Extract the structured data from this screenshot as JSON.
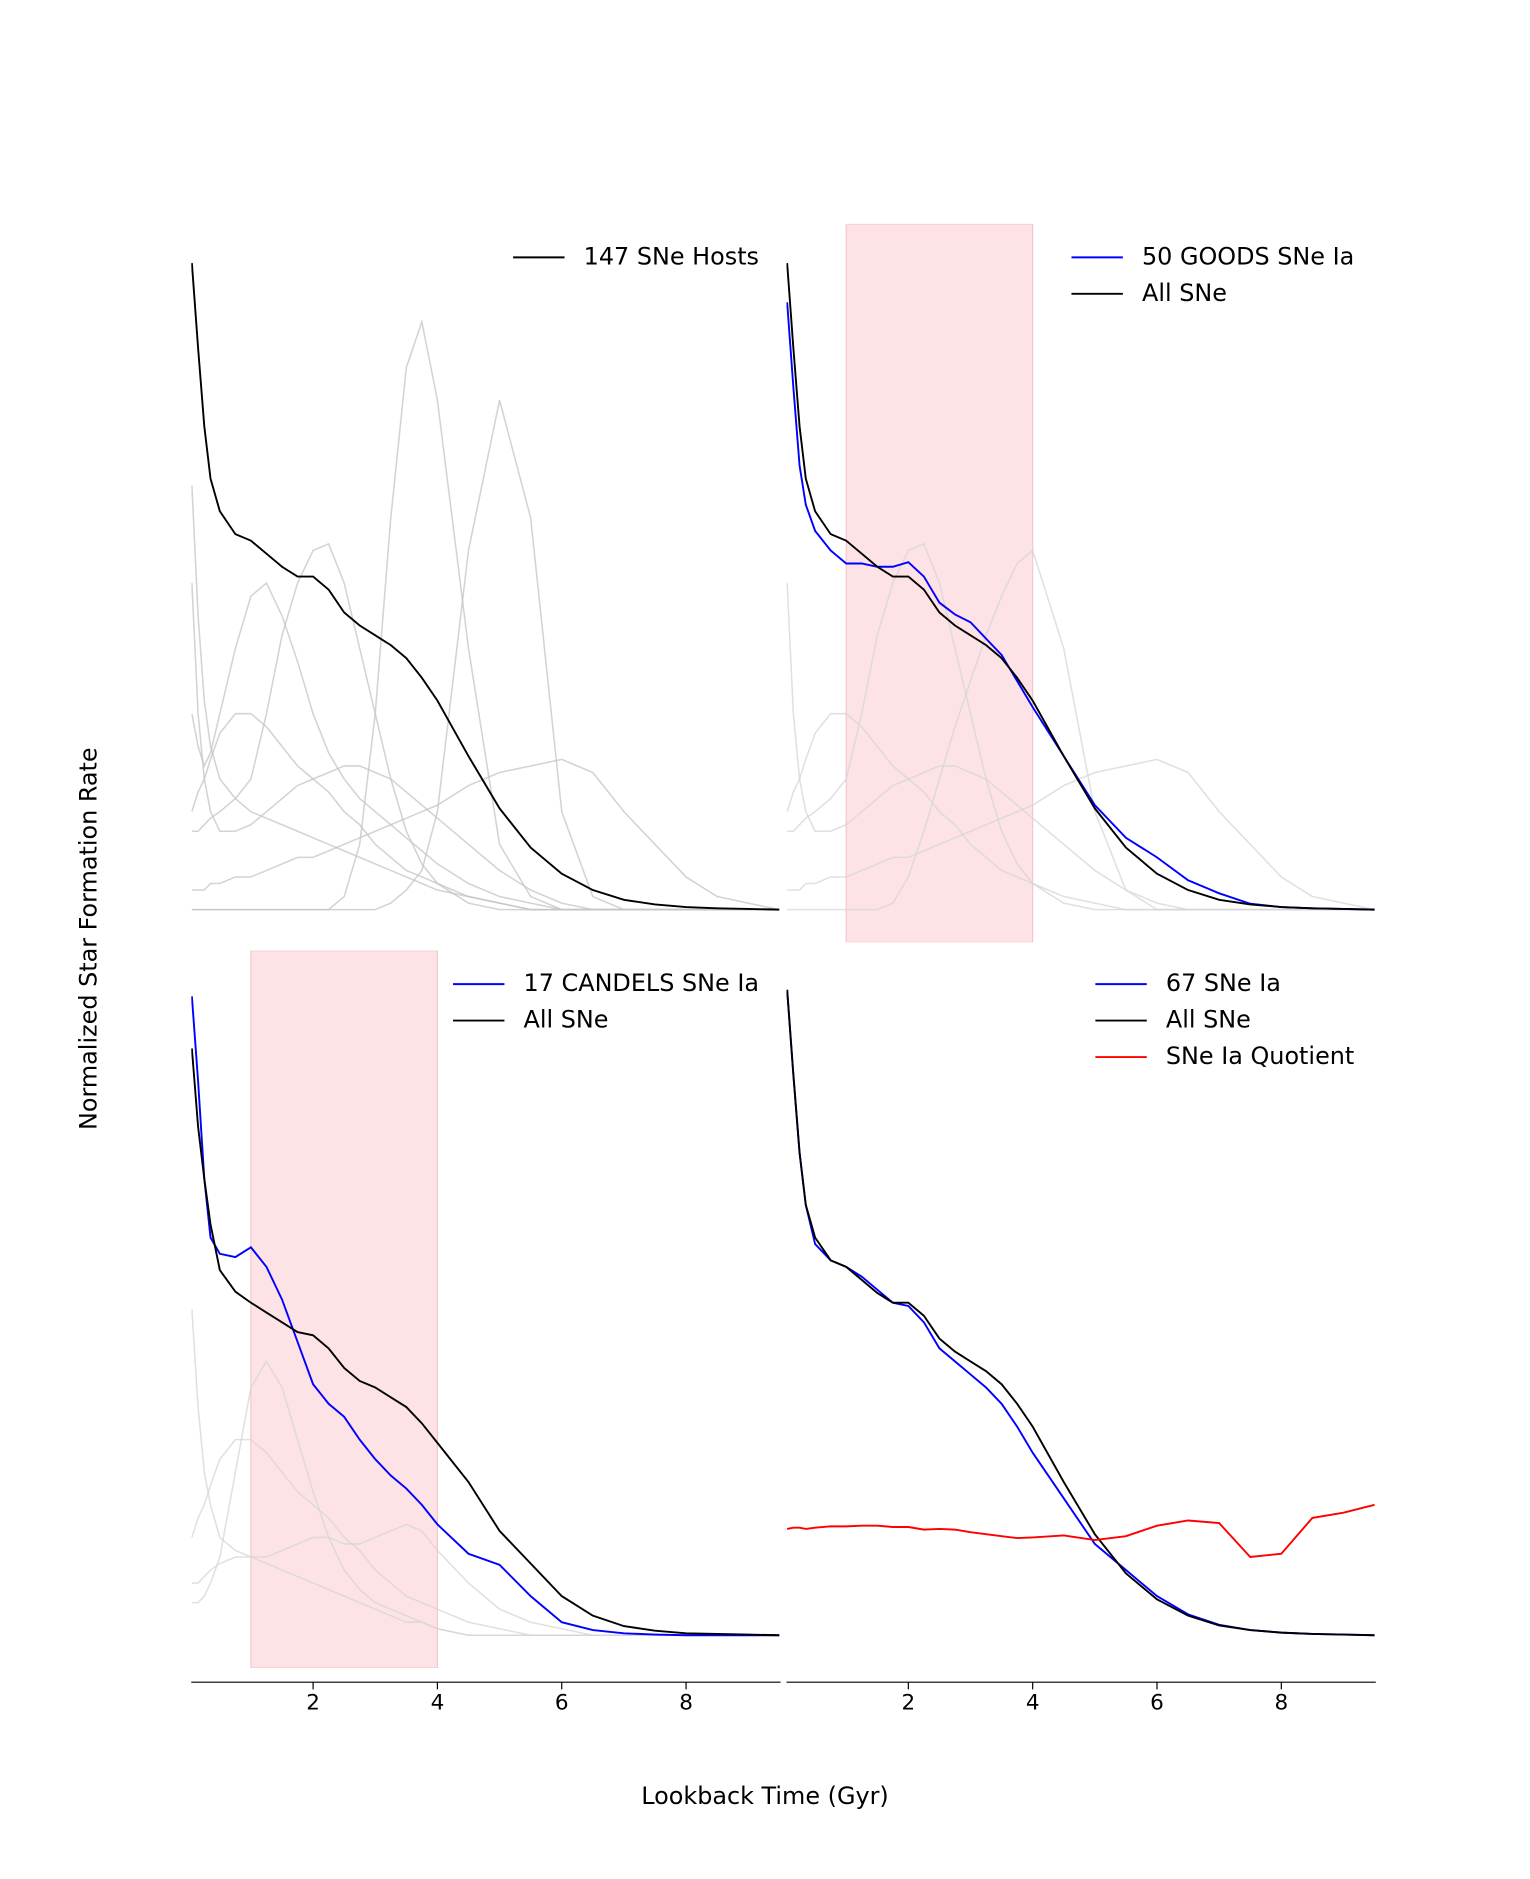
{
  "ylabel": "Normalized Star Formation Rate",
  "xlabel": "Lookback Time (Gyr)",
  "chart_data": [
    {
      "type": "line",
      "xlim": [
        0.04,
        9.52
      ],
      "ylim": [
        -0.05,
        1.05
      ],
      "x": [
        0.05,
        0.15,
        0.25,
        0.35,
        0.5,
        0.75,
        1,
        1.25,
        1.5,
        1.75,
        2,
        2.25,
        2.5,
        2.75,
        3,
        3.25,
        3.5,
        3.75,
        4,
        4.5,
        5,
        5.5,
        6,
        6.5,
        7,
        7.5,
        8,
        8.5,
        9,
        9.5
      ],
      "series": [
        {
          "color": "#c4c4c4",
          "values": [
            0,
            0,
            0,
            0,
            0,
            0,
            0,
            0,
            0,
            0,
            0,
            0,
            0.02,
            0.1,
            0.3,
            0.6,
            0.83,
            0.9,
            0.78,
            0.4,
            0.1,
            0.02,
            0,
            0,
            0,
            0,
            0,
            0,
            0,
            0
          ]
        },
        {
          "color": "#c4c4c4",
          "values": [
            0,
            0,
            0,
            0,
            0,
            0,
            0,
            0,
            0,
            0,
            0,
            0,
            0,
            0,
            0,
            0.01,
            0.03,
            0.06,
            0.15,
            0.55,
            0.78,
            0.6,
            0.15,
            0.02,
            0,
            0,
            0,
            0,
            0,
            0
          ]
        },
        {
          "color": "#c4c4c4",
          "values": [
            0.12,
            0.12,
            0.13,
            0.14,
            0.15,
            0.17,
            0.2,
            0.3,
            0.42,
            0.5,
            0.55,
            0.56,
            0.5,
            0.4,
            0.3,
            0.2,
            0.12,
            0.07,
            0.04,
            0.01,
            0,
            0,
            0,
            0,
            0,
            0,
            0,
            0,
            0,
            0
          ]
        },
        {
          "color": "#c4c4c4",
          "values": [
            0.03,
            0.03,
            0.03,
            0.04,
            0.04,
            0.05,
            0.05,
            0.06,
            0.07,
            0.08,
            0.08,
            0.09,
            0.1,
            0.11,
            0.12,
            0.13,
            0.14,
            0.15,
            0.16,
            0.19,
            0.21,
            0.22,
            0.23,
            0.21,
            0.15,
            0.1,
            0.05,
            0.02,
            0.01,
            0
          ]
        },
        {
          "color": "#c4c4c4",
          "values": [
            0.65,
            0.45,
            0.32,
            0.25,
            0.2,
            0.17,
            0.15,
            0.14,
            0.13,
            0.12,
            0.11,
            0.1,
            0.09,
            0.08,
            0.07,
            0.06,
            0.05,
            0.04,
            0.03,
            0.02,
            0.01,
            0,
            0,
            0,
            0,
            0,
            0,
            0,
            0,
            0
          ]
        },
        {
          "color": "#c4c4c4",
          "values": [
            0.15,
            0.18,
            0.2,
            0.23,
            0.27,
            0.3,
            0.3,
            0.28,
            0.25,
            0.22,
            0.2,
            0.18,
            0.15,
            0.13,
            0.1,
            0.08,
            0.06,
            0.05,
            0.04,
            0.02,
            0.01,
            0,
            0,
            0,
            0,
            0,
            0,
            0,
            0,
            0
          ]
        },
        {
          "color": "#c4c4c4",
          "values": [
            0.3,
            0.25,
            0.22,
            0.24,
            0.3,
            0.4,
            0.48,
            0.5,
            0.45,
            0.38,
            0.3,
            0.24,
            0.2,
            0.17,
            0.15,
            0.13,
            0.11,
            0.09,
            0.07,
            0.04,
            0.02,
            0.01,
            0,
            0,
            0,
            0,
            0,
            0,
            0,
            0
          ]
        },
        {
          "color": "#c4c4c4",
          "values": [
            0.5,
            0.3,
            0.2,
            0.15,
            0.12,
            0.12,
            0.13,
            0.15,
            0.17,
            0.19,
            0.2,
            0.21,
            0.22,
            0.22,
            0.21,
            0.2,
            0.18,
            0.16,
            0.14,
            0.1,
            0.06,
            0.03,
            0.01,
            0,
            0,
            0,
            0,
            0,
            0,
            0
          ]
        },
        {
          "name": "147 SNe Hosts",
          "color": "#000000",
          "values": [
            0.99,
            0.86,
            0.74,
            0.66,
            0.61,
            0.575,
            0.565,
            0.545,
            0.525,
            0.51,
            0.51,
            0.49,
            0.455,
            0.435,
            0.42,
            0.405,
            0.385,
            0.355,
            0.32,
            0.235,
            0.155,
            0.095,
            0.055,
            0.03,
            0.015,
            0.008,
            0.004,
            0.002,
            0.001,
            0
          ]
        }
      ]
    },
    {
      "type": "line",
      "xlim": [
        0.04,
        9.52
      ],
      "ylim": [
        -0.05,
        1.05
      ],
      "shade": [
        1,
        4
      ],
      "shade_color": "#fde0e3",
      "x": [
        0.05,
        0.15,
        0.25,
        0.35,
        0.5,
        0.75,
        1,
        1.25,
        1.5,
        1.75,
        2,
        2.25,
        2.5,
        2.75,
        3,
        3.25,
        3.5,
        3.75,
        4,
        4.5,
        5,
        5.5,
        6,
        6.5,
        7,
        7.5,
        8,
        8.5,
        9,
        9.5
      ],
      "series": [
        {
          "color": "#d6d6d6",
          "values": [
            0.12,
            0.12,
            0.13,
            0.14,
            0.15,
            0.17,
            0.2,
            0.3,
            0.42,
            0.5,
            0.55,
            0.56,
            0.5,
            0.4,
            0.3,
            0.2,
            0.12,
            0.07,
            0.04,
            0.01,
            0,
            0,
            0,
            0,
            0,
            0,
            0,
            0,
            0,
            0
          ]
        },
        {
          "color": "#d6d6d6",
          "values": [
            0.03,
            0.03,
            0.03,
            0.04,
            0.04,
            0.05,
            0.05,
            0.06,
            0.07,
            0.08,
            0.08,
            0.09,
            0.1,
            0.11,
            0.12,
            0.13,
            0.14,
            0.15,
            0.16,
            0.19,
            0.21,
            0.22,
            0.23,
            0.21,
            0.15,
            0.1,
            0.05,
            0.02,
            0.01,
            0
          ]
        },
        {
          "color": "#d6d6d6",
          "values": [
            0.15,
            0.18,
            0.2,
            0.23,
            0.27,
            0.3,
            0.3,
            0.28,
            0.25,
            0.22,
            0.2,
            0.18,
            0.15,
            0.13,
            0.1,
            0.08,
            0.06,
            0.05,
            0.04,
            0.02,
            0.01,
            0,
            0,
            0,
            0,
            0,
            0,
            0,
            0,
            0
          ]
        },
        {
          "color": "#d6d6d6",
          "values": [
            0.5,
            0.3,
            0.2,
            0.15,
            0.12,
            0.12,
            0.13,
            0.15,
            0.17,
            0.19,
            0.2,
            0.21,
            0.22,
            0.22,
            0.21,
            0.2,
            0.18,
            0.16,
            0.14,
            0.1,
            0.06,
            0.03,
            0.01,
            0,
            0,
            0,
            0,
            0,
            0,
            0
          ]
        },
        {
          "color": "#d6d6d6",
          "values": [
            0,
            0,
            0,
            0,
            0,
            0,
            0,
            0,
            0,
            0.01,
            0.05,
            0.12,
            0.2,
            0.28,
            0.35,
            0.42,
            0.48,
            0.53,
            0.55,
            0.4,
            0.15,
            0.03,
            0,
            0,
            0,
            0,
            0,
            0,
            0,
            0
          ]
        },
        {
          "name": "50 GOODS SNe Ia",
          "color": "#0000ff",
          "values": [
            0.93,
            0.8,
            0.68,
            0.62,
            0.58,
            0.55,
            0.53,
            0.53,
            0.525,
            0.525,
            0.532,
            0.51,
            0.47,
            0.452,
            0.44,
            0.415,
            0.39,
            0.35,
            0.31,
            0.235,
            0.16,
            0.11,
            0.08,
            0.045,
            0.025,
            0.009,
            0.004,
            0.002,
            0.001,
            0
          ]
        },
        {
          "name": "All SNe",
          "color": "#000000",
          "values": [
            0.99,
            0.86,
            0.74,
            0.66,
            0.61,
            0.575,
            0.565,
            0.545,
            0.525,
            0.51,
            0.51,
            0.49,
            0.455,
            0.435,
            0.42,
            0.405,
            0.385,
            0.355,
            0.32,
            0.235,
            0.155,
            0.095,
            0.055,
            0.03,
            0.015,
            0.008,
            0.004,
            0.002,
            0.001,
            0
          ]
        }
      ]
    },
    {
      "type": "line",
      "xlim": [
        0.04,
        9.52
      ],
      "ylim": [
        -0.05,
        1.05
      ],
      "shade": [
        1,
        4
      ],
      "shade_color": "#fde0e3",
      "xticks": [
        2,
        4,
        6,
        8
      ],
      "x": [
        0.05,
        0.15,
        0.25,
        0.35,
        0.5,
        0.75,
        1,
        1.25,
        1.5,
        1.75,
        2,
        2.25,
        2.5,
        2.75,
        3,
        3.25,
        3.5,
        3.75,
        4,
        4.5,
        5,
        5.5,
        6,
        6.5,
        7,
        7.5,
        8,
        8.5,
        9,
        9.5
      ],
      "series": [
        {
          "color": "#d6d6d6",
          "values": [
            0.5,
            0.35,
            0.25,
            0.2,
            0.15,
            0.13,
            0.12,
            0.11,
            0.1,
            0.09,
            0.08,
            0.07,
            0.06,
            0.05,
            0.04,
            0.03,
            0.02,
            0.02,
            0.01,
            0,
            0,
            0,
            0,
            0,
            0,
            0,
            0,
            0,
            0,
            0
          ]
        },
        {
          "color": "#d6d6d6",
          "values": [
            0.15,
            0.18,
            0.2,
            0.23,
            0.27,
            0.3,
            0.3,
            0.28,
            0.25,
            0.22,
            0.2,
            0.18,
            0.15,
            0.13,
            0.1,
            0.08,
            0.06,
            0.05,
            0.04,
            0.02,
            0.01,
            0,
            0,
            0,
            0,
            0,
            0,
            0,
            0,
            0
          ]
        },
        {
          "color": "#d6d6d6",
          "values": [
            0.05,
            0.05,
            0.06,
            0.08,
            0.12,
            0.25,
            0.38,
            0.42,
            0.38,
            0.3,
            0.22,
            0.15,
            0.1,
            0.07,
            0.05,
            0.04,
            0.03,
            0.02,
            0.01,
            0,
            0,
            0,
            0,
            0,
            0,
            0,
            0,
            0,
            0,
            0
          ]
        },
        {
          "color": "#d6d6d6",
          "values": [
            0.08,
            0.08,
            0.09,
            0.1,
            0.11,
            0.12,
            0.12,
            0.12,
            0.13,
            0.14,
            0.15,
            0.15,
            0.14,
            0.14,
            0.15,
            0.16,
            0.17,
            0.16,
            0.13,
            0.08,
            0.04,
            0.02,
            0.01,
            0,
            0,
            0,
            0,
            0,
            0,
            0
          ]
        },
        {
          "name": "17 CANDELS SNe Ia",
          "color": "#0000ff",
          "values": [
            0.98,
            0.85,
            0.7,
            0.61,
            0.585,
            0.58,
            0.595,
            0.565,
            0.515,
            0.45,
            0.385,
            0.355,
            0.335,
            0.3,
            0.27,
            0.245,
            0.225,
            0.2,
            0.17,
            0.125,
            0.108,
            0.06,
            0.02,
            0.008,
            0.003,
            0.001,
            0,
            0,
            0,
            0
          ]
        },
        {
          "name": "All SNe",
          "color": "#000000",
          "values": [
            0.9,
            0.78,
            0.7,
            0.63,
            0.56,
            0.527,
            0.51,
            0.495,
            0.48,
            0.465,
            0.46,
            0.44,
            0.41,
            0.39,
            0.38,
            0.365,
            0.35,
            0.325,
            0.295,
            0.235,
            0.16,
            0.11,
            0.06,
            0.03,
            0.014,
            0.007,
            0.003,
            0.002,
            0.001,
            0
          ]
        }
      ]
    },
    {
      "type": "line",
      "xlim": [
        0.04,
        9.52
      ],
      "ylim": [
        -0.05,
        1.05
      ],
      "xticks": [
        2,
        4,
        6,
        8
      ],
      "x": [
        0.05,
        0.15,
        0.25,
        0.35,
        0.5,
        0.75,
        1,
        1.25,
        1.5,
        1.75,
        2,
        2.25,
        2.5,
        2.75,
        3,
        3.25,
        3.5,
        3.75,
        4,
        4.5,
        5,
        5.5,
        6,
        6.5,
        7,
        7.5,
        8,
        8.5,
        9,
        9.5
      ],
      "series": [
        {
          "name": "67 SNe Ia",
          "color": "#0000ff",
          "values": [
            0.99,
            0.86,
            0.74,
            0.66,
            0.6,
            0.575,
            0.565,
            0.55,
            0.53,
            0.51,
            0.505,
            0.48,
            0.44,
            0.42,
            0.4,
            0.38,
            0.355,
            0.32,
            0.28,
            0.21,
            0.14,
            0.1,
            0.06,
            0.032,
            0.016,
            0.008,
            0.004,
            0.002,
            0.001,
            0
          ]
        },
        {
          "name": "All SNe",
          "color": "#000000",
          "values": [
            0.99,
            0.86,
            0.74,
            0.66,
            0.61,
            0.575,
            0.565,
            0.545,
            0.525,
            0.51,
            0.51,
            0.49,
            0.455,
            0.435,
            0.42,
            0.405,
            0.385,
            0.355,
            0.32,
            0.235,
            0.155,
            0.095,
            0.055,
            0.03,
            0.015,
            0.008,
            0.004,
            0.002,
            0.001,
            0
          ]
        },
        {
          "name": "SNe Ia Quotient",
          "color": "#ff0000",
          "values": [
            0.163,
            0.165,
            0.165,
            0.163,
            0.165,
            0.167,
            0.167,
            0.168,
            0.168,
            0.166,
            0.166,
            0.162,
            0.163,
            0.162,
            0.158,
            0.155,
            0.152,
            0.149,
            0.15,
            0.153,
            0.146,
            0.152,
            0.168,
            0.176,
            0.172,
            0.12,
            0.125,
            0.18,
            0.188,
            0.2
          ]
        }
      ]
    }
  ]
}
